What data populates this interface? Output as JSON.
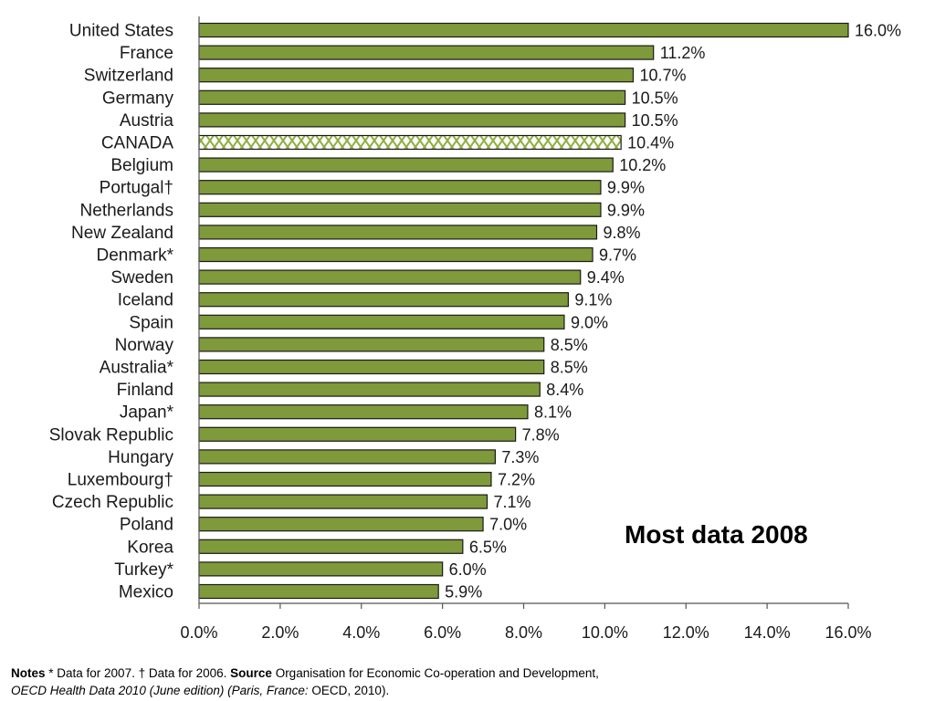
{
  "chart_data": {
    "type": "bar",
    "orientation": "horizontal",
    "categories": [
      "United States",
      "France",
      "Switzerland",
      "Germany",
      "Austria",
      "CANADA",
      "Belgium",
      "Portugal†",
      "Netherlands",
      "New Zealand",
      "Denmark*",
      "Sweden",
      "Iceland",
      "Spain",
      "Norway",
      "Australia*",
      "Finland",
      "Japan*",
      "Slovak Republic",
      "Hungary",
      "Luxembourg†",
      "Czech Republic",
      "Poland",
      "Korea",
      "Turkey*",
      "Mexico"
    ],
    "values": [
      16.0,
      11.2,
      10.7,
      10.5,
      10.5,
      10.4,
      10.2,
      9.9,
      9.9,
      9.8,
      9.7,
      9.4,
      9.1,
      9.0,
      8.5,
      8.5,
      8.4,
      8.1,
      7.8,
      7.3,
      7.2,
      7.1,
      7.0,
      6.5,
      6.0,
      5.9
    ],
    "value_labels": [
      "16.0%",
      "11.2%",
      "10.7%",
      "10.5%",
      "10.5%",
      "10.4%",
      "10.2%",
      "9.9%",
      "9.9%",
      "9.8%",
      "9.7%",
      "9.4%",
      "9.1%",
      "9.0%",
      "8.5%",
      "8.5%",
      "8.4%",
      "8.1%",
      "7.8%",
      "7.3%",
      "7.2%",
      "7.1%",
      "7.0%",
      "6.5%",
      "6.0%",
      "5.9%"
    ],
    "highlighted_category": "CANADA",
    "xlim": [
      0,
      16
    ],
    "x_ticks": [
      0,
      2,
      4,
      6,
      8,
      10,
      12,
      14,
      16
    ],
    "x_tick_labels": [
      "0.0%",
      "2.0%",
      "4.0%",
      "6.0%",
      "8.0%",
      "10.0%",
      "12.0%",
      "14.0%",
      "16.0%"
    ],
    "grid": false,
    "legend": "none",
    "annotation": "Most data 2008",
    "colors": {
      "bar_fill": "#7f9a3a",
      "bar_stroke": "#1a1a1a",
      "highlight_pattern": "#8fae3f",
      "highlight_bg": "#ffffff"
    }
  },
  "notes": {
    "notes_label": "Notes",
    "notes_text": " * Data for 2007.  † Data for 2006. ",
    "source_label": "Source",
    "source_text": " Organisation for Economic Co-operation and Development,",
    "pub_italic_1": "OECD Health Data 2010 (June edition) (Paris, France:",
    "pub_plain": " OECD, 2010)."
  }
}
